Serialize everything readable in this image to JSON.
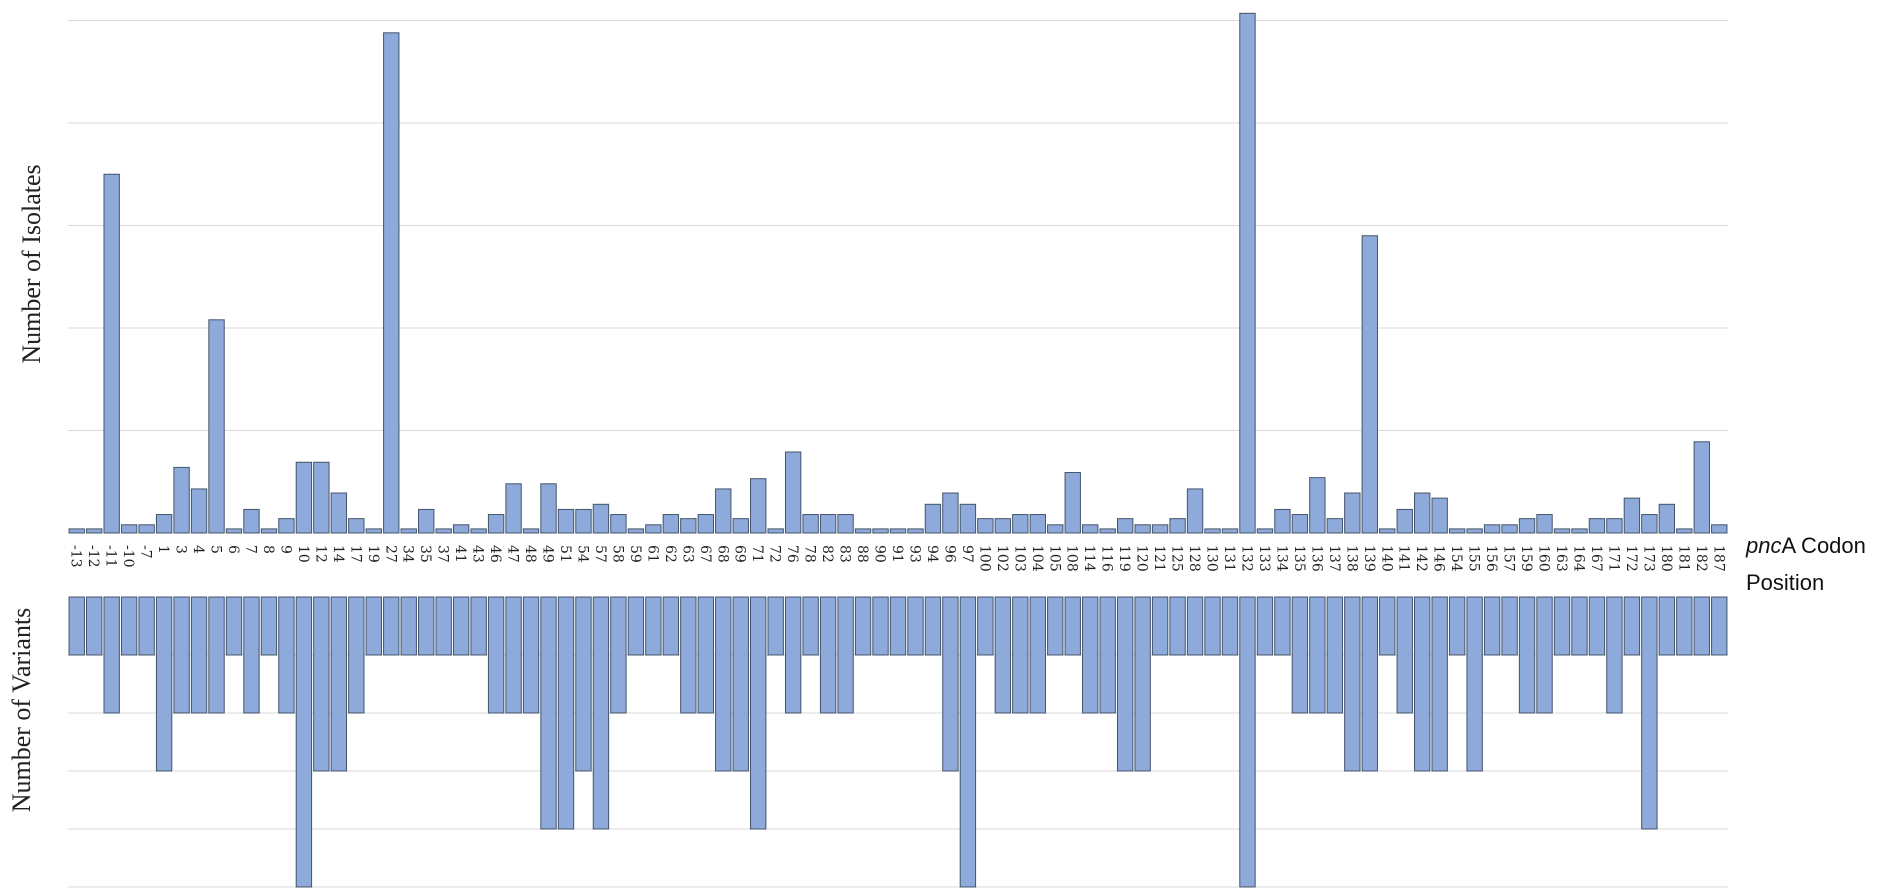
{
  "chart_data": [
    {
      "type": "bar",
      "ylabel": "Number of Isolates",
      "xlabel_italic": "pnc",
      "xlabel_rest": "A Codon",
      "xlabel_line2": "Position",
      "ylim": [
        0,
        50
      ],
      "grid_step": 10,
      "color": "#8eaadb",
      "categories": [
        "-13",
        "-12",
        "-11",
        "-10",
        "-7",
        "1",
        "3",
        "4",
        "5",
        "6",
        "7",
        "8",
        "9",
        "10",
        "12",
        "14",
        "17",
        "19",
        "27",
        "34",
        "35",
        "37",
        "41",
        "43",
        "46",
        "47",
        "48",
        "49",
        "51",
        "54",
        "57",
        "58",
        "59",
        "61",
        "62",
        "63",
        "67",
        "68",
        "69",
        "71",
        "72",
        "76",
        "78",
        "82",
        "83",
        "88",
        "90",
        "91",
        "93",
        "94",
        "96",
        "97",
        "100",
        "102",
        "103",
        "104",
        "105",
        "108",
        "114",
        "116",
        "119",
        "120",
        "121",
        "125",
        "128",
        "130",
        "131",
        "132",
        "133",
        "134",
        "135",
        "136",
        "137",
        "138",
        "139",
        "140",
        "141",
        "142",
        "146",
        "154",
        "155",
        "156",
        "157",
        "159",
        "160",
        "163",
        "164",
        "167",
        "171",
        "172",
        "173",
        "180",
        "181",
        "182",
        "187"
      ],
      "values": [
        0.4,
        0.4,
        35,
        0.8,
        0.8,
        1.8,
        6.4,
        4.3,
        20.8,
        0.4,
        2.3,
        0.4,
        1.4,
        6.9,
        6.9,
        3.9,
        1.4,
        0.4,
        48.8,
        0.4,
        2.3,
        0.4,
        0.8,
        0.4,
        1.8,
        4.8,
        0.4,
        4.8,
        2.3,
        2.3,
        2.8,
        1.8,
        0.4,
        0.8,
        1.8,
        1.4,
        1.8,
        4.3,
        1.4,
        5.3,
        0.4,
        7.9,
        1.8,
        1.8,
        1.8,
        0.4,
        0.4,
        0.4,
        0.4,
        2.8,
        3.9,
        2.8,
        1.4,
        1.4,
        1.8,
        1.8,
        0.8,
        5.9,
        0.8,
        0.4,
        1.4,
        0.8,
        0.8,
        1.4,
        4.3,
        0.4,
        0.4,
        50.7,
        0.4,
        2.3,
        1.8,
        5.4,
        1.4,
        3.9,
        29,
        0.4,
        2.3,
        3.9,
        3.4,
        0.4,
        0.4,
        0.8,
        0.8,
        1.4,
        1.8,
        0.4,
        0.4,
        1.4,
        1.4,
        3.4,
        1.8,
        2.8,
        0.4,
        8.9,
        0.8
      ]
    },
    {
      "type": "bar",
      "ylabel": "Number of Variants",
      "orientation": "downward",
      "ylim": [
        0,
        5
      ],
      "grid_step": 1,
      "color": "#8eaadb",
      "categories": [
        "-13",
        "-12",
        "-11",
        "-10",
        "-7",
        "1",
        "3",
        "4",
        "5",
        "6",
        "7",
        "8",
        "9",
        "10",
        "12",
        "14",
        "17",
        "19",
        "27",
        "34",
        "35",
        "37",
        "41",
        "43",
        "46",
        "47",
        "48",
        "49",
        "51",
        "54",
        "57",
        "58",
        "59",
        "61",
        "62",
        "63",
        "67",
        "68",
        "69",
        "71",
        "72",
        "76",
        "78",
        "82",
        "83",
        "88",
        "90",
        "91",
        "93",
        "94",
        "96",
        "97",
        "100",
        "102",
        "103",
        "104",
        "105",
        "108",
        "114",
        "116",
        "119",
        "120",
        "121",
        "125",
        "128",
        "130",
        "131",
        "132",
        "133",
        "134",
        "135",
        "136",
        "137",
        "138",
        "139",
        "140",
        "141",
        "142",
        "146",
        "154",
        "155",
        "156",
        "157",
        "159",
        "160",
        "163",
        "164",
        "167",
        "171",
        "172",
        "173",
        "180",
        "181",
        "182",
        "187"
      ],
      "values": [
        1,
        1,
        2,
        1,
        1,
        3,
        2,
        2,
        2,
        1,
        2,
        1,
        2,
        5,
        3,
        3,
        2,
        1,
        1,
        1,
        1,
        1,
        1,
        1,
        2,
        2,
        2,
        4,
        4,
        3,
        4,
        2,
        1,
        1,
        1,
        2,
        2,
        3,
        3,
        4,
        1,
        2,
        1,
        2,
        2,
        1,
        1,
        1,
        1,
        1,
        3,
        5,
        1,
        2,
        2,
        2,
        1,
        1,
        2,
        2,
        3,
        3,
        1,
        1,
        1,
        1,
        1,
        5,
        1,
        1,
        2,
        2,
        2,
        3,
        3,
        1,
        2,
        3,
        3,
        1,
        3,
        1,
        1,
        2,
        2,
        1,
        1,
        1,
        2,
        1,
        4,
        1,
        1,
        1,
        1
      ]
    }
  ]
}
